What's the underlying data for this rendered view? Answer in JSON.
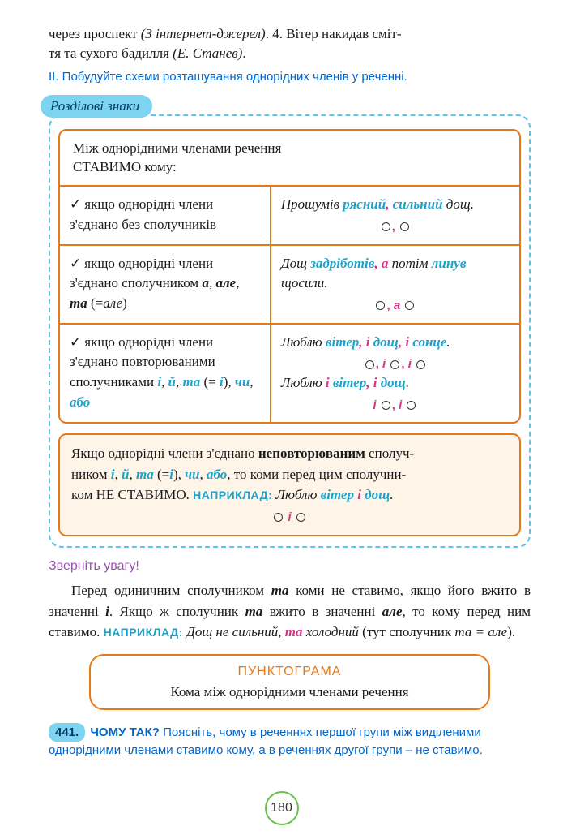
{
  "intro": {
    "line1_a": "через проспект ",
    "line1_b": "(З інтернет-джерел)",
    "line1_c": ". 4. Вітер накидав сміт-",
    "line2_a": "тя та сухого бадилля ",
    "line2_b": "(Е. Станев)",
    "line2_c": "."
  },
  "task2": "ІІ. Побудуйте схеми розташування однорідних членів у реченні.",
  "section_tag": "Розділові знаки",
  "header": {
    "l1": "Між однорідними членами речення",
    "l2": "СТАВИМО кому:"
  },
  "row1": {
    "left": "якщо однорідні члени з'єднано без сполучників",
    "right_a": "Прошумів ",
    "right_b": "рясний",
    "right_c": ", ",
    "right_d": "сильний",
    "right_e": " дощ."
  },
  "row2": {
    "left_a": "якщо однорідні члени з'єднано сполучником ",
    "left_b": "а",
    "left_c": ", ",
    "left_d": "але",
    "left_e": ", ",
    "left_f": "та",
    "left_g": " (=",
    "left_h": "але",
    "left_i": ")",
    "right_a": "Дощ ",
    "right_b": "задріботів",
    "right_c": ", ",
    "right_d": "а",
    "right_e": " потім ",
    "right_f": "линув",
    "right_g": " щосили.",
    "conj": "а"
  },
  "row3": {
    "left_a": "якщо однорідні члени з'єднано повторюваними сполучниками ",
    "left_b": "і",
    "left_c": ", ",
    "left_d": "й",
    "left_e": ", ",
    "left_f": "та",
    "left_g": " (= ",
    "left_h": "і",
    "left_i": "), ",
    "left_j": "чи",
    "left_k": ", ",
    "left_l": "або",
    "r1_a": "Люблю ",
    "r1_b": "вітер",
    "r1_c": ", ",
    "r1_d": "і",
    "r1_e": " ",
    "r1_f": "дощ",
    "r1_g": ", ",
    "r1_h": "і",
    "r1_i": " ",
    "r1_j": "сонце",
    "r1_k": ".",
    "r2_a": "Люблю ",
    "r2_b": "і",
    "r2_c": " ",
    "r2_d": "вітер",
    "r2_e": ", ",
    "r2_f": "і",
    "r2_g": " ",
    "r2_h": "дощ",
    "r2_i": ".",
    "conj": "і"
  },
  "peach": {
    "p1": "Якщо однорідні члени з'єднано ",
    "p2": "неповторюваним",
    "p3": " сполуч-",
    "p4": "ником ",
    "p5": "і",
    "p6": ", ",
    "p7": "й",
    "p8": ", ",
    "p9": "та",
    "p10": " (=",
    "p11": "і",
    "p12": "), ",
    "p13": "чи",
    "p14": ", ",
    "p15": "або",
    "p16": ",  то коми перед цим сполучни-",
    "p17": "ком НЕ СТАВИМО. ",
    "nap": "НАПРИКЛАД:",
    "ex_a": " Люблю ",
    "ex_b": "вітер",
    "ex_c": " ",
    "ex_d": "і",
    "ex_e": " ",
    "ex_f": "дощ",
    "ex_g": ".",
    "conj": "і"
  },
  "attention_title": "Зверніть увагу!",
  "attention": {
    "t1": "Перед одиничним сполучником ",
    "t2": "та",
    "t3": " коми не ставимо, якщо його вжито в значенні ",
    "t4": "і",
    "t5": ". Якщо ж сполучник ",
    "t6": "та",
    "t7": " вжито в значенні ",
    "t8": "але",
    "t9": ", то кому перед ним ставимо. ",
    "nap": "НАПРИКЛАД:",
    "ex_a": " Дощ не сильний, ",
    "ex_b": "та",
    "ex_c": " холодний ",
    "ex_d": "(тут сполучник ",
    "ex_e": "та = але",
    "ex_f": ")."
  },
  "punkt": {
    "title": "ПУНКТОГРАМА",
    "body": "Кома між однорідними членами речення"
  },
  "ex441": {
    "num": "441.",
    "title": " ЧОМУ ТАК?",
    "body": " Поясніть, чому в реченнях першої групи між виділеними однорідними членами ставимо кому, а в реченнях другої групи – не ставимо."
  },
  "page": "180"
}
